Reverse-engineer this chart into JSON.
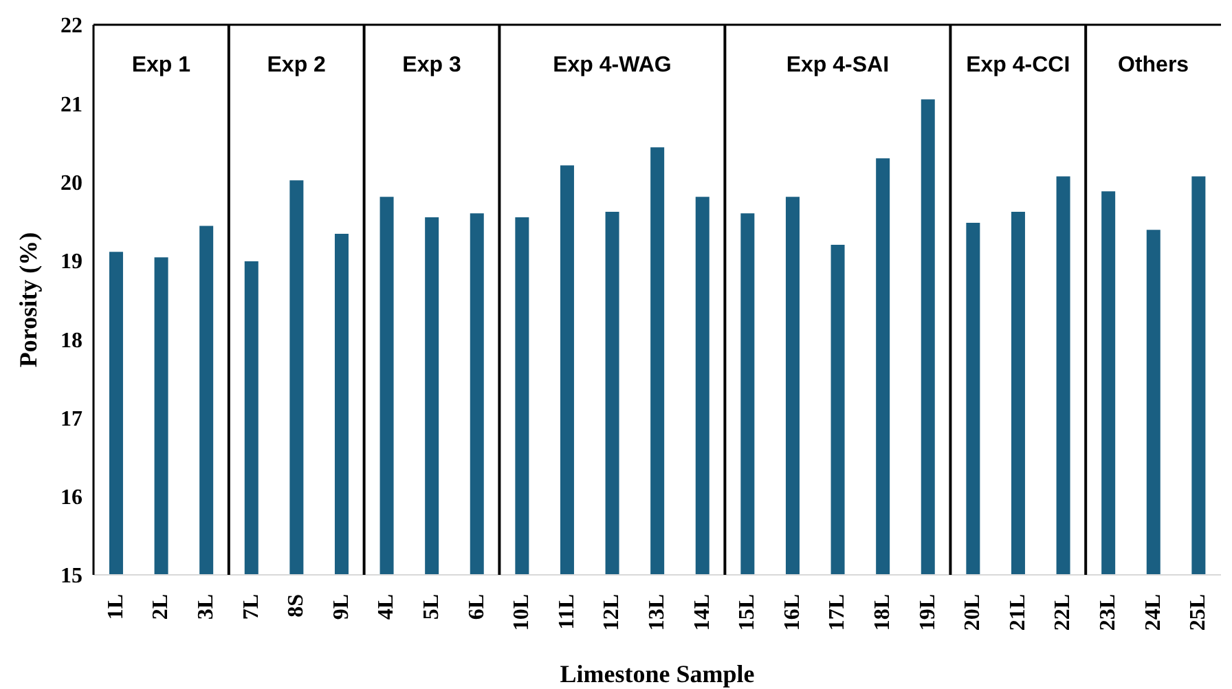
{
  "chart_data": {
    "type": "bar",
    "xlabel": "Limestone Sample",
    "ylabel": "Porosity (%)",
    "categories": [
      "1L",
      "2L",
      "3L",
      "7L",
      "8S",
      "9L",
      "4L",
      "5L",
      "6L",
      "10L",
      "11L",
      "12L",
      "13L",
      "14L",
      "15L",
      "16L",
      "17L",
      "18L",
      "19L",
      "20L",
      "21L",
      "22L",
      "23L",
      "24L",
      "25L"
    ],
    "values": [
      19.11,
      19.04,
      19.44,
      18.99,
      20.02,
      19.34,
      19.81,
      19.55,
      19.6,
      19.55,
      20.21,
      19.62,
      20.44,
      19.81,
      19.6,
      19.81,
      19.2,
      20.3,
      21.05,
      19.48,
      19.62,
      20.07,
      19.88,
      19.39,
      20.07
    ],
    "color": "#1a5f82",
    "ylim": [
      15,
      22
    ],
    "yticks": [
      15,
      16,
      17,
      18,
      19,
      20,
      21,
      22
    ],
    "grid": false,
    "legend": false,
    "annotations": [
      "Exp 1",
      "Exp 2",
      "Exp 3",
      "Exp 4-WAG",
      "Exp 4-SAI",
      "Exp 4-CCI",
      "Others"
    ]
  }
}
